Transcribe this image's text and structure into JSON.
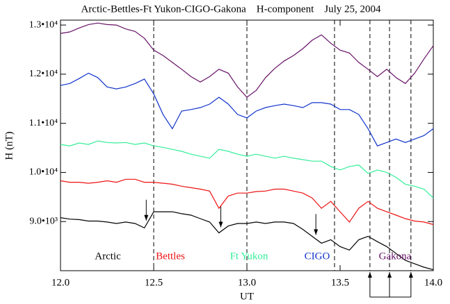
{
  "chart_data": {
    "type": "line",
    "title": "Arctic-Bettles-Ft Yukon-CIGO-Gakona    H-component    July 25, 2004",
    "x_label": "UT",
    "y_label": "H (nT)",
    "xlim": [
      12.0,
      14.0
    ],
    "ylim": [
      8000,
      13100
    ],
    "xticks": [
      {
        "value": 12.0,
        "label": "12.0"
      },
      12.5,
      {
        "value": 13.0,
        "label": "13.0"
      },
      13.5,
      {
        "value": 14.0,
        "label": "14.0"
      }
    ],
    "yticks": [
      {
        "value": 9000,
        "label": "9.0•10³"
      },
      {
        "value": 10000,
        "label": "1.0•10⁴"
      },
      {
        "value": 11000,
        "label": "1.1•10⁴"
      },
      {
        "value": 12000,
        "label": "1.2•10⁴"
      },
      {
        "value": 13000,
        "label": "1.3•10⁴"
      }
    ],
    "grid": false,
    "vlines": [
      12.5,
      13.0,
      13.47,
      13.66,
      13.765,
      13.88
    ],
    "arrows_down": [
      12.46,
      12.86,
      13.37
    ],
    "arrows_up": [
      13.66,
      13.765,
      13.88
    ],
    "x": [
      12.0,
      12.05,
      12.1,
      12.15,
      12.2,
      12.25,
      12.3,
      12.35,
      12.4,
      12.45,
      12.5,
      12.55,
      12.6,
      12.65,
      12.7,
      12.75,
      12.8,
      12.85,
      12.9,
      12.95,
      13.0,
      13.05,
      13.1,
      13.15,
      13.2,
      13.25,
      13.3,
      13.35,
      13.4,
      13.45,
      13.5,
      13.55,
      13.6,
      13.65,
      13.7,
      13.75,
      13.8,
      13.85,
      13.9,
      13.95,
      14.0
    ],
    "series": [
      {
        "name": "Arctic",
        "color": "#000000",
        "values": [
          9080,
          9050,
          9040,
          9010,
          9010,
          8990,
          8960,
          8990,
          8960,
          8870,
          9200,
          9200,
          9200,
          9160,
          9130,
          9060,
          8990,
          8770,
          8910,
          8960,
          8960,
          8990,
          8960,
          8990,
          8990,
          8960,
          8840,
          8700,
          8560,
          8630,
          8490,
          8420,
          8630,
          8700,
          8590,
          8490,
          8350,
          8210,
          8140,
          8070,
          8020
        ]
      },
      {
        "name": "Bettles",
        "color": "#ee1111",
        "values": [
          9830,
          9800,
          9800,
          9780,
          9800,
          9830,
          9800,
          9860,
          9860,
          9800,
          9800,
          9780,
          9760,
          9720,
          9690,
          9660,
          9620,
          9270,
          9520,
          9580,
          9580,
          9610,
          9620,
          9660,
          9660,
          9620,
          9580,
          9480,
          9270,
          9410,
          9200,
          8990,
          9270,
          9410,
          9270,
          9200,
          9130,
          9060,
          9010,
          8990,
          8940
        ]
      },
      {
        "name": "Ft Yukon",
        "color": "#33ee99",
        "values": [
          10570,
          10540,
          10600,
          10570,
          10640,
          10610,
          10600,
          10610,
          10570,
          10600,
          10540,
          10510,
          10470,
          10430,
          10370,
          10330,
          10290,
          10470,
          10430,
          10370,
          10330,
          10370,
          10330,
          10290,
          10330,
          10290,
          10260,
          10230,
          10230,
          10120,
          10050,
          10120,
          10150,
          9980,
          10050,
          10000,
          9900,
          9760,
          9720,
          9660,
          9480
        ]
      },
      {
        "name": "CIGO",
        "color": "#1133cc",
        "values": [
          11770,
          11810,
          11910,
          12020,
          11930,
          11740,
          11700,
          11740,
          11810,
          11900,
          11600,
          11180,
          10890,
          11250,
          11280,
          11320,
          11390,
          11530,
          11390,
          11180,
          11110,
          11250,
          11320,
          11360,
          11390,
          11360,
          11320,
          11420,
          11420,
          11390,
          11280,
          11280,
          11180,
          10890,
          10540,
          10610,
          10680,
          10610,
          10680,
          10750,
          10890
        ]
      },
      {
        "name": "Gakona",
        "color": "#661166",
        "values": [
          12830,
          12860,
          12940,
          13010,
          13040,
          13010,
          13000,
          12920,
          12870,
          12730,
          12490,
          12380,
          12240,
          12100,
          11950,
          11840,
          11950,
          12100,
          12020,
          11740,
          11530,
          11670,
          11930,
          12120,
          12270,
          12380,
          12520,
          12690,
          12800,
          12630,
          12490,
          12430,
          12240,
          12100,
          11950,
          12100,
          11930,
          11810,
          12020,
          12310,
          12580
        ]
      }
    ]
  }
}
